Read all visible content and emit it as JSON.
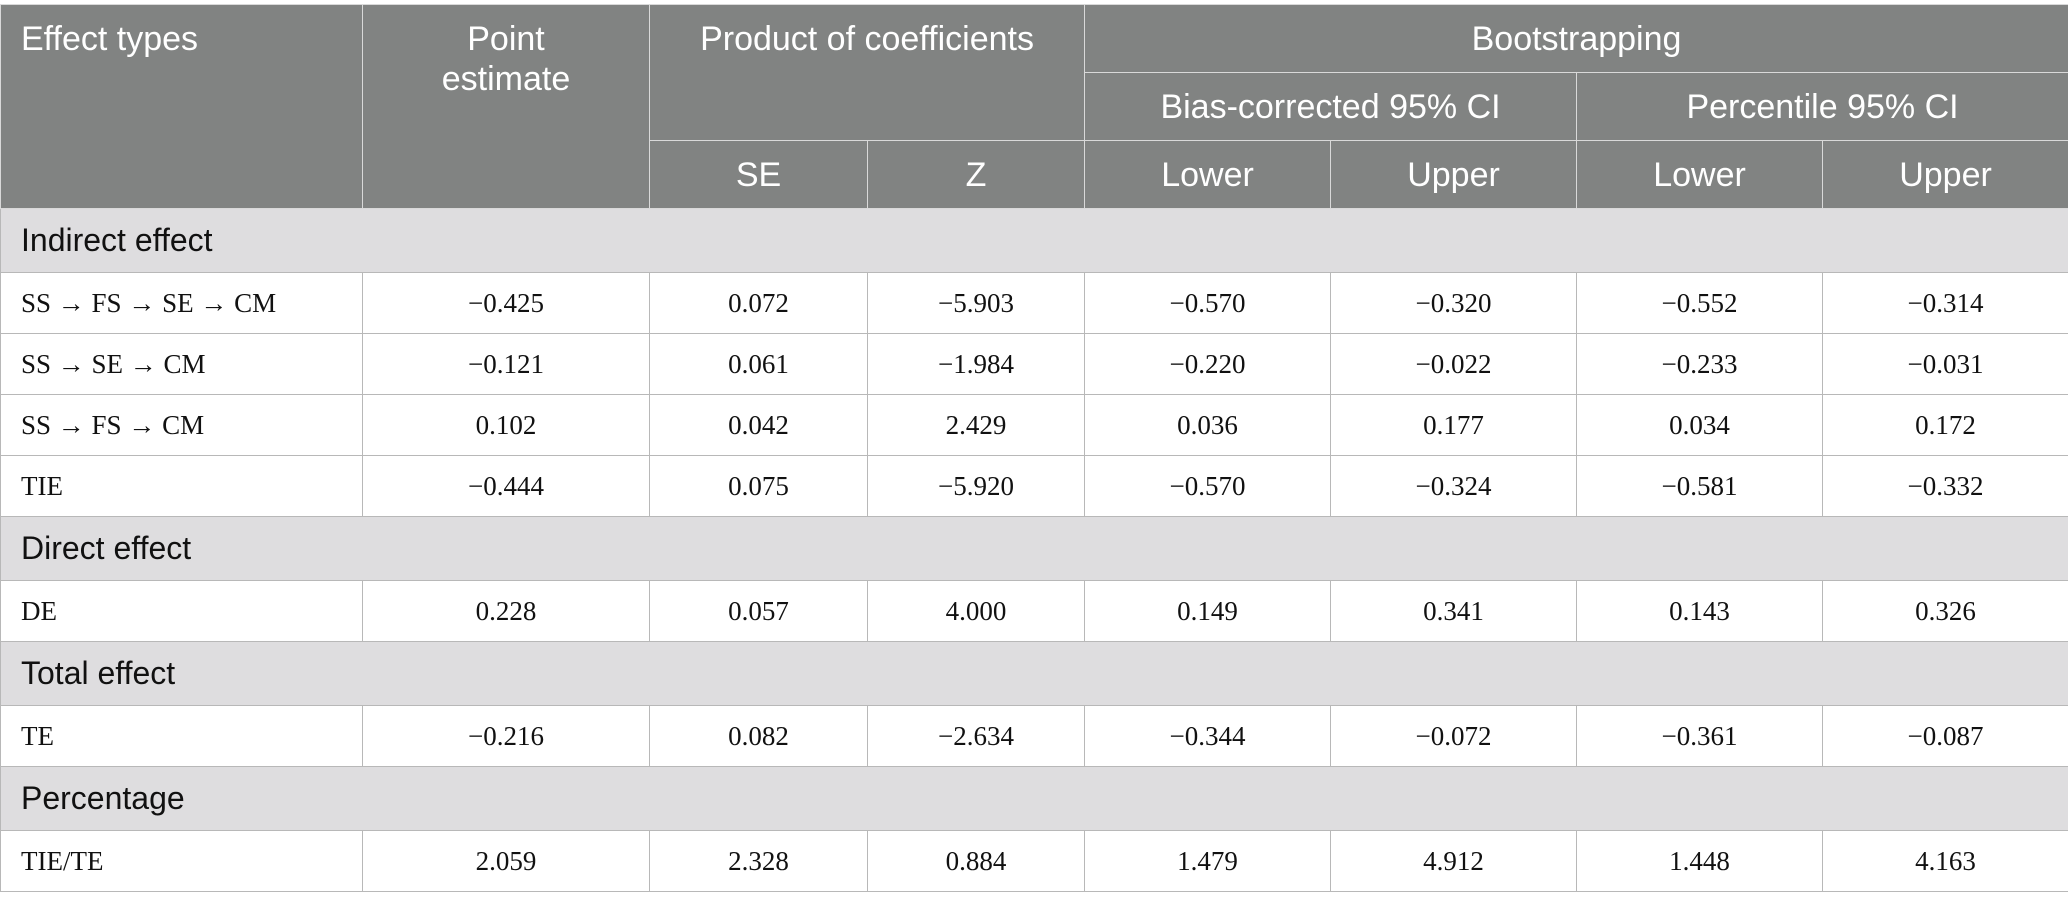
{
  "headers": {
    "effect_types": "Effect types",
    "point_estimate": "Point estimate",
    "product_of_coefficients": "Product of coefficients",
    "bootstrapping": "Bootstrapping",
    "bias_corrected": "Bias-corrected 95% CI",
    "percentile": "Percentile 95% CI",
    "se": "SE",
    "z": "Z",
    "lower": "Lower",
    "upper": "Upper"
  },
  "sections": [
    {
      "title": "Indirect effect",
      "rows": [
        {
          "label": "SS → FS → SE → CM",
          "point": "−0.425",
          "se": "0.072",
          "z": "−5.903",
          "bc_lower": "−0.570",
          "bc_upper": "−0.320",
          "p_lower": "−0.552",
          "p_upper": "−0.314"
        },
        {
          "label": "SS → SE → CM",
          "point": "−0.121",
          "se": "0.061",
          "z": "−1.984",
          "bc_lower": "−0.220",
          "bc_upper": "−0.022",
          "p_lower": "−0.233",
          "p_upper": "−0.031"
        },
        {
          "label": "SS → FS → CM",
          "point": "0.102",
          "se": "0.042",
          "z": "2.429",
          "bc_lower": "0.036",
          "bc_upper": "0.177",
          "p_lower": "0.034",
          "p_upper": "0.172"
        },
        {
          "label": "TIE",
          "point": "−0.444",
          "se": "0.075",
          "z": "−5.920",
          "bc_lower": "−0.570",
          "bc_upper": "−0.324",
          "p_lower": "−0.581",
          "p_upper": "−0.332"
        }
      ]
    },
    {
      "title": "Direct effect",
      "rows": [
        {
          "label": "DE",
          "point": "0.228",
          "se": "0.057",
          "z": "4.000",
          "bc_lower": "0.149",
          "bc_upper": "0.341",
          "p_lower": "0.143",
          "p_upper": "0.326"
        }
      ]
    },
    {
      "title": "Total effect",
      "rows": [
        {
          "label": "TE",
          "point": "−0.216",
          "se": "0.082",
          "z": "−2.634",
          "bc_lower": "−0.344",
          "bc_upper": "−0.072",
          "p_lower": "−0.361",
          "p_upper": "−0.087"
        }
      ]
    },
    {
      "title": "Percentage",
      "rows": [
        {
          "label": "TIE/TE",
          "point": "2.059",
          "se": "2.328",
          "z": "0.884",
          "bc_lower": "1.479",
          "bc_upper": "4.912",
          "p_lower": "1.448",
          "p_upper": "4.163"
        }
      ]
    }
  ],
  "colors": {
    "header_bg": "#818382",
    "section_bg": "#dedddf",
    "border": "#b8b8b8"
  }
}
